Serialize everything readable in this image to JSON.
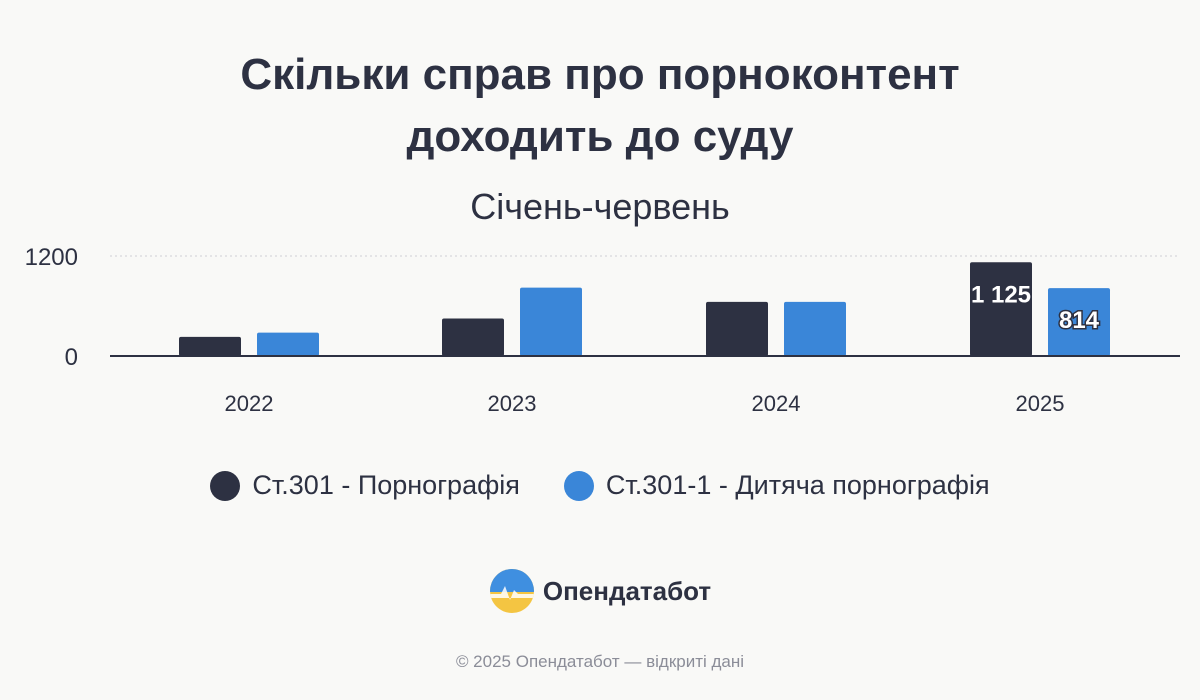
{
  "title_line1": "Скільки справ про порноконтент",
  "title_line2": "доходить до суду",
  "subtitle": "Січень-червень",
  "brand": {
    "name": "Опендатабот",
    "logo_icon": "opendatabot-logo-icon"
  },
  "footer": "© 2025 Опендатабот — відкриті дані",
  "colors": {
    "series1": "#2d3142",
    "series2": "#3a86d8",
    "background": "#f9f9f7"
  },
  "chart_data": {
    "type": "bar",
    "title": "Скільки справ про порноконтент доходить до суду",
    "subtitle": "Січень-червень",
    "categories": [
      "2022",
      "2023",
      "2024",
      "2025"
    ],
    "series": [
      {
        "name": "Ст.301 - Порнографія",
        "values": [
          230,
          450,
          650,
          1125
        ]
      },
      {
        "name": "Ст.301-1 - Дитяча порнографія",
        "values": [
          280,
          820,
          650,
          814
        ]
      }
    ],
    "data_labels": [
      "",
      "",
      "",
      "",
      "",
      "",
      "1 125",
      "814"
    ],
    "y_ticks": [
      "0",
      "1200"
    ],
    "ylim": [
      0,
      1200
    ],
    "grid": true,
    "legend_position": "bottom"
  }
}
